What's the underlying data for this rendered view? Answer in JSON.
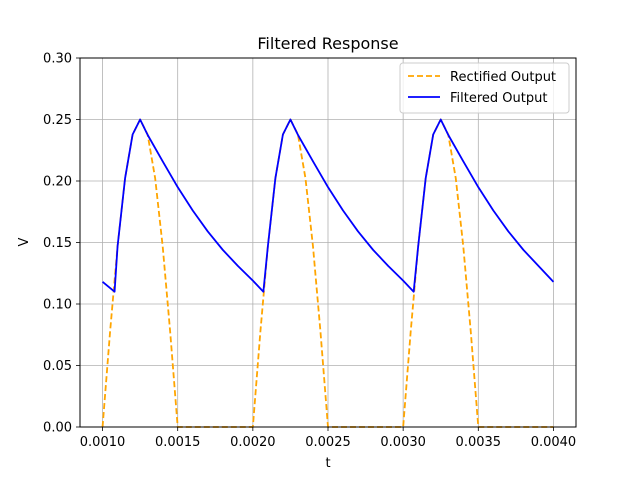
{
  "chart_data": {
    "type": "line",
    "title": "Filtered Response",
    "xlabel": "t",
    "ylabel": "V",
    "xlim": [
      0.00085,
      0.00415
    ],
    "ylim": [
      0.0,
      0.3
    ],
    "xticks": [
      "0.0010",
      "0.0015",
      "0.0020",
      "0.0025",
      "0.0030",
      "0.0035",
      "0.0040"
    ],
    "xtick_values": [
      0.001,
      0.0015,
      0.002,
      0.0025,
      0.003,
      0.0035,
      0.004
    ],
    "yticks": [
      "0.00",
      "0.05",
      "0.10",
      "0.15",
      "0.20",
      "0.25",
      "0.30"
    ],
    "ytick_values": [
      0.0,
      0.05,
      0.1,
      0.15,
      0.2,
      0.25,
      0.3
    ],
    "grid": true,
    "legend_position": "top-right",
    "series": [
      {
        "name": "Rectified Output",
        "color": "#ffa500",
        "style": "dashed",
        "x": [
          0.001,
          0.00105,
          0.0011,
          0.00115,
          0.0012,
          0.00125,
          0.0013,
          0.00135,
          0.0014,
          0.00145,
          0.0015,
          0.0016,
          0.0017,
          0.0018,
          0.0019,
          0.002,
          0.002,
          0.00205,
          0.0021,
          0.00215,
          0.0022,
          0.00225,
          0.0023,
          0.00235,
          0.0024,
          0.00245,
          0.0025,
          0.0026,
          0.0027,
          0.0028,
          0.0029,
          0.003,
          0.003,
          0.00305,
          0.0031,
          0.00315,
          0.0032,
          0.00325,
          0.0033,
          0.00335,
          0.0034,
          0.00345,
          0.0035,
          0.0036,
          0.0037,
          0.0038,
          0.0039,
          0.004
        ],
        "y": [
          0.0,
          0.0773,
          0.147,
          0.2023,
          0.2378,
          0.25,
          0.2378,
          0.2023,
          0.147,
          0.0773,
          0.0,
          0.0,
          0.0,
          0.0,
          0.0,
          0.0,
          0.0,
          0.0773,
          0.147,
          0.2023,
          0.2378,
          0.25,
          0.2378,
          0.2023,
          0.147,
          0.0773,
          0.0,
          0.0,
          0.0,
          0.0,
          0.0,
          0.0,
          0.0,
          0.0773,
          0.147,
          0.2023,
          0.2378,
          0.25,
          0.2378,
          0.2023,
          0.147,
          0.0773,
          0.0,
          0.0,
          0.0,
          0.0,
          0.0,
          0.0
        ]
      },
      {
        "name": "Filtered Output",
        "color": "#0000ff",
        "style": "solid",
        "x": [
          0.001,
          0.00108,
          0.0011,
          0.00115,
          0.0012,
          0.00125,
          0.0013,
          0.0014,
          0.0015,
          0.0016,
          0.0017,
          0.0018,
          0.0019,
          0.002,
          0.00207,
          0.0021,
          0.00215,
          0.0022,
          0.00225,
          0.0023,
          0.0024,
          0.0025,
          0.0026,
          0.0027,
          0.0028,
          0.0029,
          0.003,
          0.00307,
          0.0031,
          0.00315,
          0.0032,
          0.00325,
          0.0033,
          0.0034,
          0.0035,
          0.0036,
          0.0037,
          0.0038,
          0.0039,
          0.004
        ],
        "y": [
          0.118,
          0.11,
          0.147,
          0.2023,
          0.2378,
          0.25,
          0.2375,
          0.216,
          0.195,
          0.176,
          0.159,
          0.144,
          0.131,
          0.119,
          0.11,
          0.147,
          0.2023,
          0.2378,
          0.25,
          0.2375,
          0.216,
          0.195,
          0.176,
          0.159,
          0.144,
          0.131,
          0.119,
          0.11,
          0.147,
          0.2023,
          0.2378,
          0.25,
          0.2375,
          0.216,
          0.195,
          0.176,
          0.159,
          0.144,
          0.131,
          0.118
        ]
      }
    ]
  }
}
